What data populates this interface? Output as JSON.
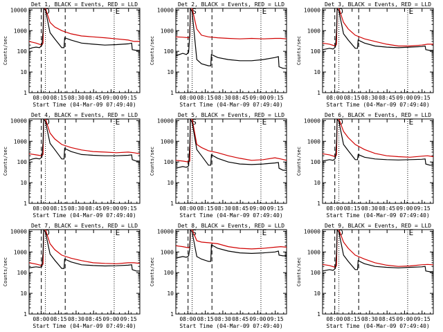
{
  "figure": {
    "start_time_label": "Start Time (04-Mar-09 07:49:40)",
    "ylabel": "Counts/sec"
  },
  "chart_data": [
    {
      "type": "line",
      "title": "Det 1, BLACK = Events, RED = LLD",
      "xlabel": "Start Time (04-Mar-09 07:49:40)",
      "ylabel": "Counts/sec",
      "xticks": [
        "08:00",
        "08:15",
        "08:30",
        "08:45",
        "09:00",
        "09:15"
      ],
      "yticks": [
        "1",
        "10",
        "100",
        "1000",
        "10000"
      ],
      "xlim_minutes_after_07:49:40": [
        0,
        95
      ],
      "ylim": [
        1,
        12000
      ],
      "yscale": "log",
      "flags": [
        "D",
        "E"
      ],
      "series": [
        {
          "color": "#d00000",
          "x": [
            0,
            6,
            11,
            12,
            12.5,
            14,
            18,
            22,
            28,
            36,
            45,
            55,
            65,
            75,
            85,
            90,
            95
          ],
          "y": [
            300,
            250,
            200,
            250,
            15000,
            12000,
            2500,
            1500,
            1000,
            700,
            550,
            500,
            450,
            400,
            350,
            300,
            300
          ]
        },
        {
          "color": "#000000",
          "x": [
            0,
            3,
            6,
            9,
            11,
            12,
            12.5,
            14,
            18,
            22,
            28,
            30,
            30.5,
            36,
            45,
            55,
            65,
            75,
            85,
            88,
            88.5,
            92,
            95
          ],
          "y": [
            130,
            150,
            160,
            150,
            200,
            900,
            15000,
            10000,
            800,
            400,
            150,
            150,
            450,
            350,
            250,
            220,
            200,
            210,
            230,
            250,
            120,
            110,
            110
          ]
        }
      ]
    },
    {
      "type": "line",
      "title": "Det 2, BLACK = Events, RED = LLD",
      "xlabel": "Start Time (04-Mar-09 07:49:40)",
      "ylabel": "Counts/sec",
      "xticks": [
        "08:00",
        "08:15",
        "08:30",
        "08:45",
        "09:00",
        "09:15"
      ],
      "yticks": [
        "1",
        "10",
        "100",
        "1000",
        "10000"
      ],
      "xlim_minutes_after_07:49:40": [
        0,
        95
      ],
      "ylim": [
        1,
        12000
      ],
      "yscale": "log",
      "flags": [
        "S",
        "E"
      ],
      "series": [
        {
          "color": "#d00000",
          "x": [
            0,
            6,
            11,
            12,
            12.5,
            14,
            18,
            22,
            28,
            36,
            45,
            55,
            65,
            75,
            85,
            90,
            95
          ],
          "y": [
            500,
            480,
            450,
            500,
            15000,
            12000,
            1200,
            600,
            500,
            450,
            420,
            400,
            420,
            400,
            420,
            420,
            400
          ]
        },
        {
          "color": "#000000",
          "x": [
            0,
            3,
            6,
            9,
            11,
            12,
            12.5,
            14,
            18,
            22,
            28,
            30,
            30.5,
            36,
            45,
            55,
            65,
            75,
            85,
            88,
            88.5,
            92,
            95
          ],
          "y": [
            60,
            70,
            80,
            70,
            90,
            700,
            15000,
            8000,
            40,
            25,
            20,
            20,
            70,
            50,
            40,
            35,
            35,
            40,
            50,
            55,
            18,
            15,
            15
          ]
        }
      ]
    },
    {
      "type": "line",
      "title": "Det 3, BLACK = Events, RED = LLD",
      "xlabel": "Start Time (04-Mar-09 07:49:40)",
      "ylabel": "Counts/sec",
      "xticks": [
        "08:00",
        "08:15",
        "08:30",
        "08:45",
        "09:00",
        "09:15"
      ],
      "yticks": [
        "1",
        "10",
        "100",
        "1000",
        "10000"
      ],
      "xlim_minutes_after_07:49:40": [
        0,
        95
      ],
      "ylim": [
        1,
        12000
      ],
      "yscale": "log",
      "flags": [
        "D",
        "E"
      ],
      "series": [
        {
          "color": "#d00000",
          "x": [
            0,
            6,
            11,
            12,
            12.5,
            14,
            18,
            22,
            28,
            36,
            45,
            55,
            65,
            75,
            85,
            90,
            95
          ],
          "y": [
            250,
            220,
            180,
            220,
            15000,
            12000,
            2500,
            1200,
            600,
            400,
            300,
            220,
            180,
            180,
            200,
            220,
            220
          ]
        },
        {
          "color": "#000000",
          "x": [
            0,
            3,
            6,
            9,
            11,
            12,
            12.5,
            14,
            18,
            22,
            28,
            30,
            30.5,
            36,
            45,
            55,
            65,
            75,
            85,
            88,
            88.5,
            92,
            95
          ],
          "y": [
            120,
            130,
            140,
            130,
            160,
            900,
            15000,
            9000,
            700,
            350,
            140,
            140,
            350,
            250,
            180,
            160,
            150,
            160,
            170,
            180,
            120,
            110,
            110
          ]
        }
      ]
    },
    {
      "type": "line",
      "title": "Det 4, BLACK = Events, RED = LLD",
      "xlabel": "Start Time (04-Mar-09 07:49:40)",
      "ylabel": "Counts/sec",
      "xticks": [
        "08:00",
        "08:15",
        "08:30",
        "08:45",
        "09:00",
        "09:15"
      ],
      "yticks": [
        "1",
        "10",
        "100",
        "1000",
        "10000"
      ],
      "xlim_minutes_after_07:49:40": [
        0,
        95
      ],
      "ylim": [
        1,
        12000
      ],
      "yscale": "log",
      "flags": [
        "D",
        "E"
      ],
      "series": [
        {
          "color": "#d00000",
          "x": [
            0,
            6,
            11,
            12,
            12.5,
            14,
            18,
            22,
            28,
            36,
            45,
            55,
            65,
            75,
            85,
            90,
            95
          ],
          "y": [
            250,
            220,
            200,
            230,
            15000,
            12000,
            2500,
            1300,
            700,
            500,
            380,
            320,
            300,
            280,
            300,
            280,
            250
          ]
        },
        {
          "color": "#000000",
          "x": [
            0,
            3,
            6,
            9,
            11,
            12,
            12.5,
            14,
            18,
            22,
            28,
            30,
            30.5,
            36,
            45,
            55,
            65,
            75,
            85,
            88,
            88.5,
            92,
            95
          ],
          "y": [
            120,
            140,
            150,
            140,
            170,
            900,
            15000,
            9000,
            800,
            400,
            140,
            140,
            450,
            320,
            230,
            210,
            200,
            200,
            210,
            220,
            130,
            110,
            110
          ]
        }
      ]
    },
    {
      "type": "line",
      "title": "Det 5, BLACK = Events, RED = LLD",
      "xlabel": "Start Time (04-Mar-09 07:49:40)",
      "ylabel": "Counts/sec",
      "xticks": [
        "08:00",
        "08:15",
        "08:30",
        "08:45",
        "09:00",
        "09:15"
      ],
      "yticks": [
        "1",
        "10",
        "100",
        "1000",
        "10000"
      ],
      "xlim_minutes_after_07:49:40": [
        0,
        95
      ],
      "ylim": [
        1,
        12000
      ],
      "yscale": "log",
      "flags": [
        "S",
        "E"
      ],
      "series": [
        {
          "color": "#d00000",
          "x": [
            0,
            6,
            11,
            12,
            12.5,
            14,
            18,
            22,
            28,
            36,
            45,
            55,
            65,
            75,
            85,
            90,
            95
          ],
          "y": [
            120,
            110,
            100,
            110,
            15000,
            12000,
            700,
            500,
            350,
            280,
            200,
            150,
            120,
            130,
            160,
            140,
            120
          ]
        },
        {
          "color": "#000000",
          "x": [
            0,
            3,
            6,
            9,
            11,
            12,
            12.5,
            14,
            18,
            22,
            28,
            30,
            30.5,
            36,
            45,
            55,
            65,
            75,
            85,
            88,
            88.5,
            92,
            95
          ],
          "y": [
            50,
            55,
            60,
            55,
            65,
            700,
            15000,
            8000,
            400,
            200,
            70,
            70,
            220,
            150,
            100,
            80,
            75,
            80,
            90,
            95,
            50,
            40,
            40
          ]
        }
      ]
    },
    {
      "type": "line",
      "title": "Det 6, BLACK = Events, RED = LLD",
      "xlabel": "Start Time (04-Mar-09 07:49:40)",
      "ylabel": "Counts/sec",
      "xticks": [
        "08:00",
        "08:15",
        "08:30",
        "08:45",
        "09:00",
        "09:15"
      ],
      "yticks": [
        "1",
        "10",
        "100",
        "1000",
        "10000"
      ],
      "xlim_minutes_after_07:49:40": [
        0,
        95
      ],
      "ylim": [
        1,
        12000
      ],
      "yscale": "log",
      "flags": [
        "D",
        "E"
      ],
      "series": [
        {
          "color": "#d00000",
          "x": [
            0,
            6,
            11,
            12,
            12.5,
            14,
            18,
            22,
            28,
            36,
            45,
            55,
            65,
            75,
            85,
            90,
            95
          ],
          "y": [
            250,
            220,
            180,
            220,
            15000,
            12000,
            3000,
            1500,
            700,
            400,
            260,
            200,
            180,
            170,
            190,
            200,
            180
          ]
        },
        {
          "color": "#000000",
          "x": [
            0,
            3,
            6,
            9,
            11,
            12,
            12.5,
            14,
            18,
            22,
            28,
            30,
            30.5,
            36,
            45,
            55,
            65,
            75,
            85,
            88,
            88.5,
            92,
            95
          ],
          "y": [
            110,
            120,
            130,
            120,
            150,
            900,
            15000,
            9000,
            700,
            350,
            130,
            130,
            230,
            170,
            140,
            130,
            125,
            130,
            135,
            140,
            80,
            70,
            70
          ]
        }
      ]
    },
    {
      "type": "line",
      "title": "Det 7, BLACK = Events, RED = LLD",
      "xlabel": "Start Time (04-Mar-09 07:49:40)",
      "ylabel": "Counts/sec",
      "xticks": [
        "08:00",
        "08:15",
        "08:30",
        "08:45",
        "09:00",
        "09:15"
      ],
      "yticks": [
        "1",
        "10",
        "100",
        "1000",
        "10000"
      ],
      "xlim_minutes_after_07:49:40": [
        0,
        95
      ],
      "ylim": [
        1,
        12000
      ],
      "yscale": "log",
      "flags": [
        "D",
        "E"
      ],
      "series": [
        {
          "color": "#d00000",
          "x": [
            0,
            6,
            11,
            12,
            12.5,
            14,
            18,
            22,
            28,
            36,
            45,
            55,
            65,
            75,
            85,
            90,
            95
          ],
          "y": [
            300,
            260,
            220,
            260,
            15000,
            12000,
            2500,
            1300,
            700,
            500,
            380,
            300,
            280,
            270,
            300,
            300,
            280
          ]
        },
        {
          "color": "#000000",
          "x": [
            0,
            3,
            6,
            9,
            11,
            12,
            12.5,
            14,
            18,
            22,
            28,
            30,
            30.5,
            36,
            45,
            55,
            65,
            75,
            85,
            88,
            88.5,
            92,
            95
          ],
          "y": [
            170,
            180,
            190,
            180,
            200,
            900,
            15000,
            9000,
            800,
            400,
            160,
            160,
            450,
            330,
            240,
            220,
            210,
            215,
            230,
            240,
            140,
            120,
            120
          ]
        }
      ]
    },
    {
      "type": "line",
      "title": "Det 8, BLACK = Events, RED = LLD",
      "xlabel": "Start Time (04-Mar-09 07:49:40)",
      "ylabel": "Counts/sec",
      "xticks": [
        "08:00",
        "08:15",
        "08:30",
        "08:45",
        "09:00",
        "09:15"
      ],
      "yticks": [
        "1",
        "10",
        "100",
        "1000",
        "10000"
      ],
      "xlim_minutes_after_07:49:40": [
        0,
        95
      ],
      "ylim": [
        1,
        12000
      ],
      "yscale": "log",
      "flags": [
        "S",
        "E"
      ],
      "series": [
        {
          "color": "#d00000",
          "x": [
            0,
            6,
            11,
            12,
            12.5,
            14,
            18,
            22,
            28,
            36,
            45,
            55,
            65,
            75,
            85,
            90,
            95
          ],
          "y": [
            2000,
            1800,
            1600,
            1800,
            15000,
            12000,
            3500,
            3000,
            2800,
            2500,
            1800,
            1500,
            1400,
            1500,
            1700,
            1800,
            1700
          ]
        },
        {
          "color": "#000000",
          "x": [
            0,
            3,
            6,
            9,
            11,
            12,
            12.5,
            14,
            18,
            22,
            28,
            30,
            30.5,
            36,
            45,
            55,
            65,
            75,
            85,
            88,
            88.5,
            92,
            95
          ],
          "y": [
            500,
            550,
            600,
            550,
            650,
            1500,
            15000,
            9000,
            600,
            450,
            350,
            350,
            2200,
            1500,
            1100,
            900,
            850,
            900,
            1000,
            1100,
            700,
            650,
            650
          ]
        }
      ]
    },
    {
      "type": "line",
      "title": "Det 9, BLACK = Events, RED = LLD",
      "xlabel": "Start Time (04-Mar-09 07:49:40)",
      "ylabel": "Counts/sec",
      "xticks": [
        "08:00",
        "08:15",
        "08:30",
        "08:45",
        "09:00",
        "09:15"
      ],
      "yticks": [
        "1",
        "10",
        "100",
        "1000",
        "10000"
      ],
      "xlim_minutes_after_07:49:40": [
        0,
        95
      ],
      "ylim": [
        1,
        12000
      ],
      "yscale": "log",
      "flags": [
        "D",
        "E"
      ],
      "series": [
        {
          "color": "#d00000",
          "x": [
            0,
            6,
            11,
            12,
            12.5,
            14,
            18,
            22,
            28,
            36,
            45,
            55,
            65,
            75,
            85,
            90,
            95
          ],
          "y": [
            250,
            220,
            180,
            220,
            15000,
            12000,
            3000,
            1500,
            700,
            450,
            300,
            230,
            200,
            210,
            240,
            250,
            240
          ]
        },
        {
          "color": "#000000",
          "x": [
            0,
            3,
            6,
            9,
            11,
            12,
            12.5,
            14,
            18,
            22,
            28,
            30,
            30.5,
            36,
            45,
            55,
            65,
            75,
            85,
            88,
            88.5,
            92,
            95
          ],
          "y": [
            120,
            130,
            140,
            130,
            160,
            900,
            15000,
            9000,
            700,
            350,
            140,
            140,
            380,
            270,
            200,
            180,
            170,
            180,
            190,
            200,
            120,
            110,
            110
          ]
        }
      ]
    }
  ]
}
